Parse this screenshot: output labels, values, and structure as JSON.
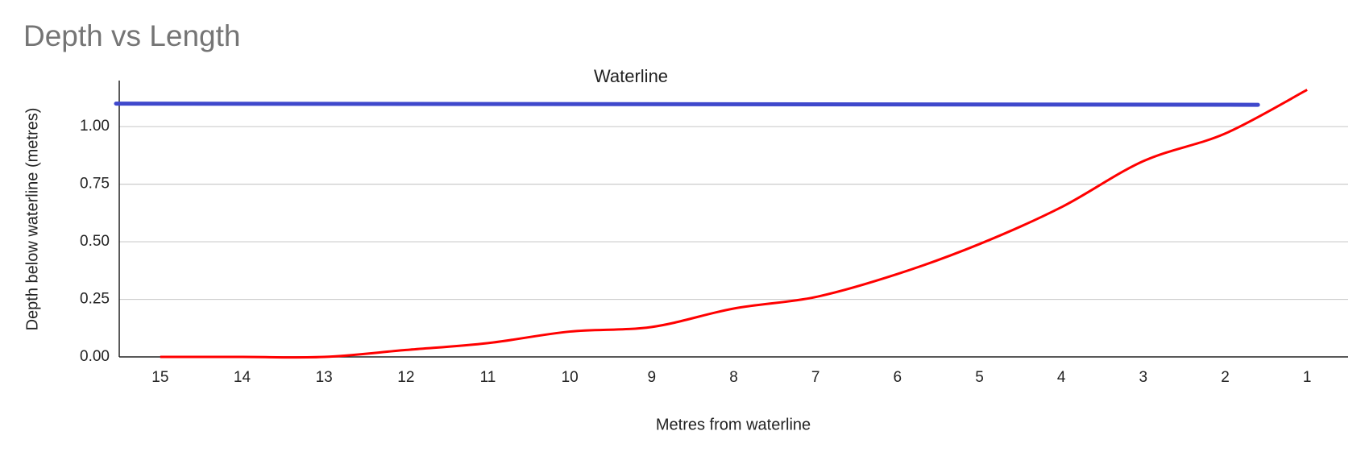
{
  "chart_data": {
    "type": "line",
    "title": "Depth vs Length",
    "x_label": "Metres from waterline",
    "y_label": "Depth below waterline (metres)",
    "categories": [
      "15",
      "14",
      "13",
      "12",
      "11",
      "10",
      "9",
      "8",
      "7",
      "6",
      "5",
      "4",
      "3",
      "2",
      "1"
    ],
    "series": [
      {
        "color": "#ff0000",
        "values": [
          0.0,
          0.0,
          0.0,
          0.03,
          0.06,
          0.11,
          0.13,
          0.21,
          0.26,
          0.36,
          0.49,
          0.65,
          0.85,
          0.97,
          1.16
        ]
      }
    ],
    "waterline": {
      "label": "Waterline",
      "value": 1.1,
      "color": "#3f48cc"
    },
    "ylim": [
      0,
      1.2
    ],
    "yticks": [
      {
        "value": 0,
        "label": "0.00"
      },
      {
        "value": 0.25,
        "label": "0.25"
      },
      {
        "value": 0.5,
        "label": "0.50"
      },
      {
        "value": 0.75,
        "label": "0.75"
      },
      {
        "value": 1,
        "label": "1.00"
      }
    ],
    "grid": true
  }
}
